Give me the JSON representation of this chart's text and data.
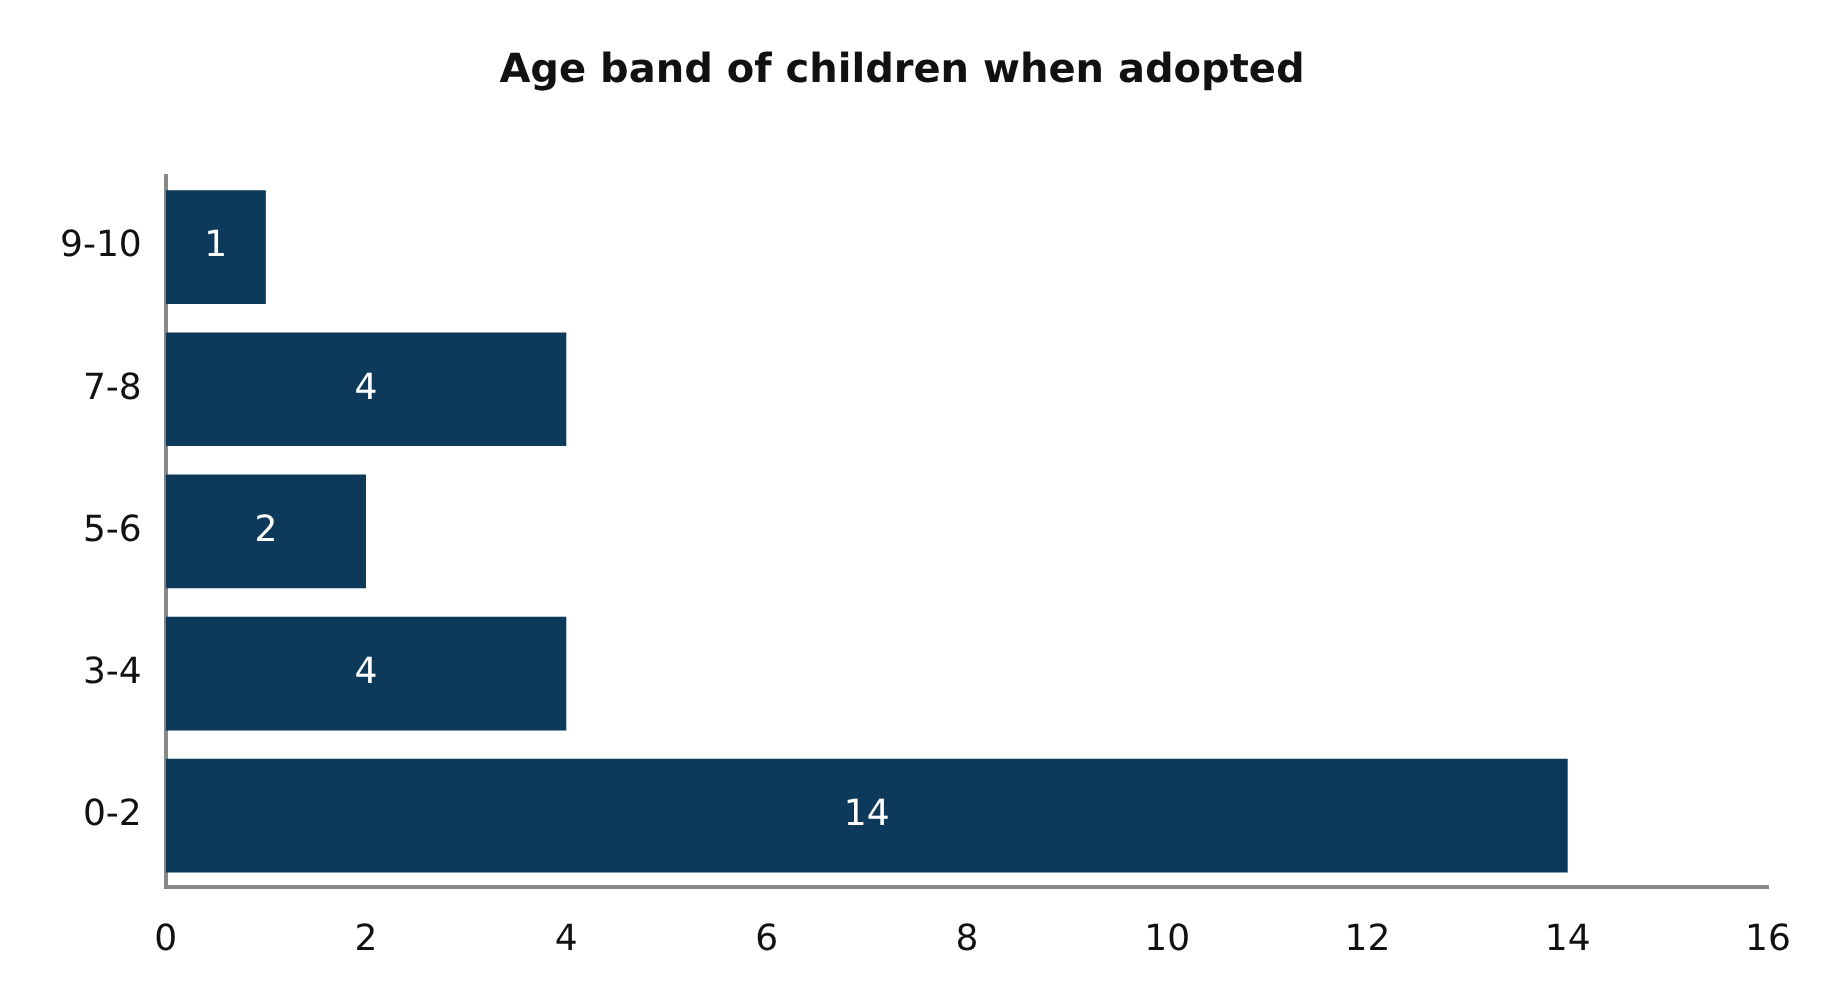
{
  "chart_data": {
    "type": "bar",
    "orientation": "horizontal",
    "title": "Age band of children when adopted",
    "categories": [
      "9-10",
      "7-8",
      "5-6",
      "3-4",
      "0-2"
    ],
    "values": [
      1,
      4,
      2,
      4,
      14
    ],
    "color": "#0d3a5a",
    "xlim": [
      0,
      16
    ],
    "xticks": [
      0,
      2,
      4,
      6,
      8,
      10,
      12,
      14,
      16
    ],
    "grid": false,
    "data_labels": true,
    "legend": false
  }
}
